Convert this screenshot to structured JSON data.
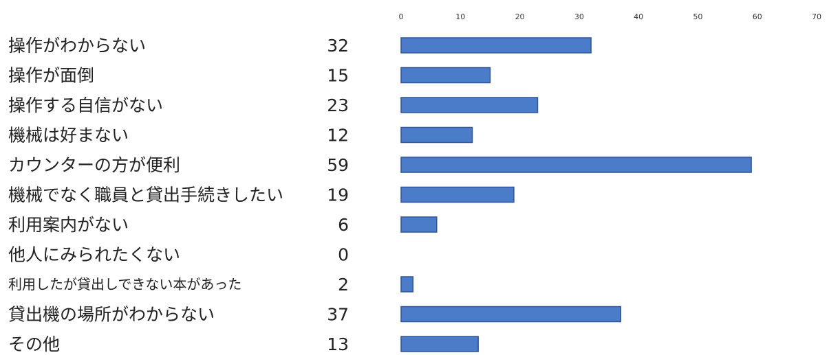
{
  "chart_data": {
    "type": "bar",
    "orientation": "horizontal",
    "title": "",
    "xlabel": "",
    "ylabel": "",
    "xlim": [
      0,
      70
    ],
    "x_ticks": [
      0,
      10,
      20,
      30,
      40,
      50,
      60,
      70
    ],
    "tick_labels": [
      "0",
      "10",
      "20",
      "30",
      "40",
      "50",
      "60",
      "70"
    ],
    "tick_position": "top",
    "grid": false,
    "legend": "none",
    "bar_color": "#4a7cc9",
    "bar_edge_color": "#2f5597",
    "categories": [
      "操作がわからない",
      "操作が面倒",
      "操作する自信がない",
      "機械は好まない",
      "カウンターの方が便利",
      "機械でなく職員と貸出手続きしたい",
      "利用案内がない",
      "他人にみられたくない",
      "利用したが貸出しできない本があった",
      "貸出機の場所がわからない",
      "その他"
    ],
    "values": [
      32,
      15,
      23,
      12,
      59,
      19,
      6,
      0,
      2,
      37,
      13
    ],
    "value_labels": [
      "32",
      "15",
      "23",
      "12",
      "59",
      "19",
      "6",
      "0",
      "2",
      "37",
      "13"
    ]
  }
}
